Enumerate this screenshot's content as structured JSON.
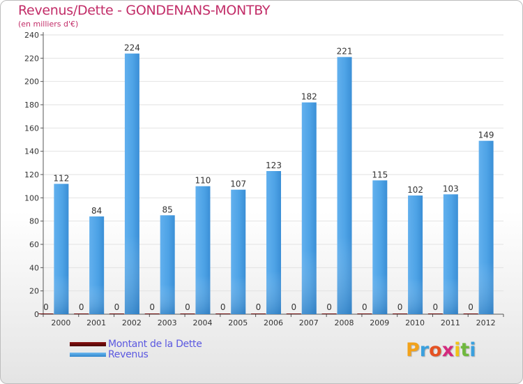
{
  "page": {
    "title": "Revenus/Dette - GONDENANS-MONTBY",
    "subtitle": "(en milliers d'€)"
  },
  "colors": {
    "title": "#c22d68",
    "revenus": "#4da3e6",
    "dette": "#6b0a0a",
    "legend_text": "#5b58e0",
    "axis": "#555555",
    "grid": "#e2e2e2"
  },
  "legend": {
    "items": [
      {
        "label": "Montant de la Dette",
        "color": "#6b0a0a"
      },
      {
        "label": "Revenus",
        "color": "#4da3e6"
      }
    ]
  },
  "logo": {
    "text": "Proxiti",
    "letters": [
      {
        "ch": "P",
        "color": "#f2a21b"
      },
      {
        "ch": "r",
        "color": "#3aa0de"
      },
      {
        "ch": "o",
        "color": "#e55223"
      },
      {
        "ch": "x",
        "color": "#d42a7e"
      },
      {
        "ch": "i",
        "color": "#f2c318"
      },
      {
        "ch": "t",
        "color": "#6fb83e"
      },
      {
        "ch": "i",
        "color": "#3aa0de"
      }
    ]
  },
  "chart_data": {
    "type": "bar",
    "title": "Revenus/Dette - GONDENANS-MONTBY",
    "subtitle": "(en milliers d'€)",
    "categories": [
      "2000",
      "2001",
      "2002",
      "2003",
      "2004",
      "2005",
      "2006",
      "2007",
      "2008",
      "2009",
      "2010",
      "2011",
      "2012"
    ],
    "series": [
      {
        "name": "Montant de la Dette",
        "color": "#6b0a0a",
        "values": [
          0,
          0,
          0,
          0,
          0,
          0,
          0,
          0,
          0,
          0,
          0,
          0,
          0
        ]
      },
      {
        "name": "Revenus",
        "color": "#4da3e6",
        "values": [
          112,
          84,
          224,
          85,
          110,
          107,
          123,
          182,
          221,
          115,
          102,
          103,
          149
        ]
      }
    ],
    "ylim": [
      0,
      240
    ],
    "yticks": [
      0,
      20,
      40,
      60,
      80,
      100,
      120,
      140,
      160,
      180,
      200,
      220,
      240
    ],
    "grid": true,
    "data_labels": true,
    "legend_position": "bottom-left"
  }
}
